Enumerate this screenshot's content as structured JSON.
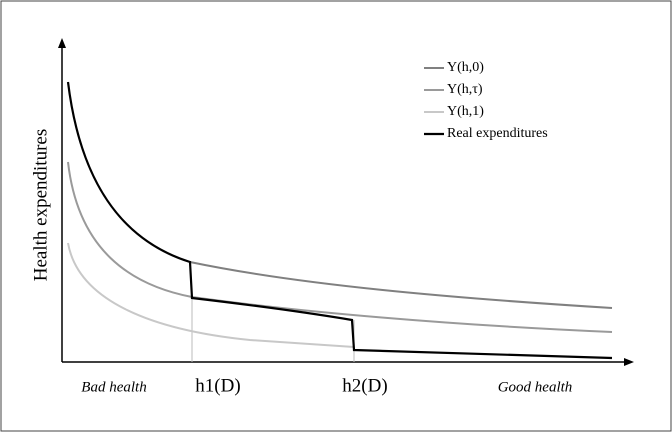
{
  "y_axis_label": "Health expenditures",
  "legend": [
    "Y(h,0)",
    "Y(h,τ)",
    "Y(h,1)",
    "Real expenditures"
  ],
  "x_labels": [
    "Bad health",
    "h1(D)",
    "h2(D)",
    "Good health"
  ]
}
